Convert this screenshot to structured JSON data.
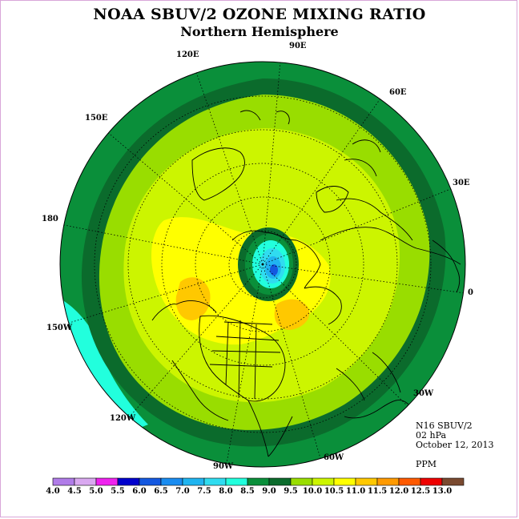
{
  "title": "NOAA SBUV/2 OZONE MIXING RATIO",
  "subtitle": "Northern Hemisphere",
  "longitude_labels": {
    "e90": "90E",
    "e60": "60E",
    "e30": "30E",
    "e0": "0",
    "w30": "30W",
    "w60": "60W",
    "w90": "90W",
    "w120": "120W",
    "w150": "150W",
    "e180": "180",
    "e150": "150E",
    "e120": "120E"
  },
  "info": {
    "instrument": "N16 SBUV/2",
    "level": "02 hPa",
    "date": "October 12, 2013",
    "units": "PPM"
  },
  "colorbar": {
    "labels": [
      "4.0",
      "4.5",
      "5.0",
      "5.5",
      "6.0",
      "6.5",
      "7.0",
      "7.5",
      "8.0",
      "8.5",
      "9.0",
      "9.5",
      "10.0",
      "10.5",
      "11.0",
      "11.5",
      "12.0",
      "12.5",
      "13.0"
    ],
    "colors": [
      "#b07ce8",
      "#d9a8f0",
      "#ee22ee",
      "#0000cc",
      "#1458e0",
      "#1a8cf0",
      "#20b4f0",
      "#30dcf0",
      "#22ffdd",
      "#0a8f3a",
      "#0b6b2c",
      "#99dd00",
      "#ccf500",
      "#ffff00",
      "#ffc800",
      "#ff9a00",
      "#ff5a00",
      "#ee0000",
      "#7a4a30"
    ]
  },
  "map_colors": {
    "ring_outer": "#0a8f3a",
    "ring_dark": "#0b6b2c",
    "band_95": "#99dd00",
    "band_100": "#ccf500",
    "band_105": "#ffff00",
    "band_110": "#ffc800",
    "low_80": "#22ffdd"
  }
}
